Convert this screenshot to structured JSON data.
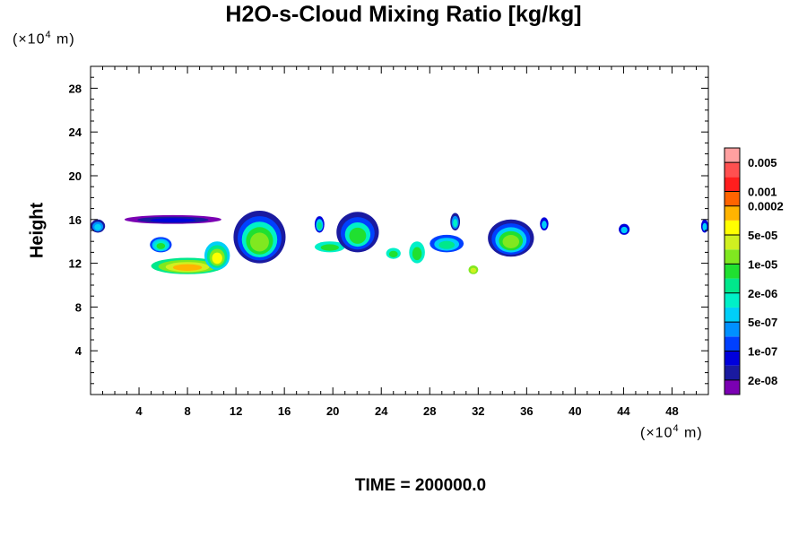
{
  "chart_data": {
    "type": "heatmap",
    "title": "H2O-s-Cloud Mixing Ratio [kg/kg]",
    "ylabel": "Height",
    "x_unit": {
      "prefix": "(×10",
      "exp": "4",
      "suffix": " m)"
    },
    "y_unit": {
      "prefix": "(×10",
      "exp": "4",
      "suffix": " m)"
    },
    "footer": "TIME = 200000.0",
    "xlim": [
      0,
      51
    ],
    "ylim": [
      0,
      30
    ],
    "x_ticks": [
      4,
      8,
      12,
      16,
      20,
      24,
      28,
      32,
      36,
      40,
      44,
      48
    ],
    "x_tick_labels": [
      "4",
      "8",
      "12",
      "16",
      "20",
      "24",
      "28",
      "32",
      "36",
      "40",
      "44",
      "48"
    ],
    "y_ticks": [
      4,
      8,
      12,
      16,
      20,
      24,
      28
    ],
    "y_tick_labels": [
      "4",
      "8",
      "12",
      "16",
      "20",
      "24",
      "28"
    ],
    "colorbar": {
      "colors": [
        "#7b00b3",
        "#1a1aa0",
        "#0000dc",
        "#0040ff",
        "#0090ff",
        "#00cff8",
        "#00f0c8",
        "#00e88c",
        "#20e030",
        "#80e820",
        "#d0f020",
        "#ffff00",
        "#ffb400",
        "#ff6400",
        "#ff1e1e",
        "#ff5050",
        "#ffa0a0"
      ],
      "labels": [
        "2e-08",
        "1e-07",
        "5e-07",
        "2e-06",
        "1e-05",
        "5e-05",
        "0.0002",
        "0.001",
        "0.005"
      ],
      "label_at_boundary": [
        1,
        3,
        5,
        7,
        9,
        11,
        13,
        14,
        16
      ]
    },
    "features": [
      {
        "x": [
          0.0,
          1.2
        ],
        "y": [
          14.8,
          16.0
        ],
        "levels": [
          1,
          4,
          5
        ]
      },
      {
        "x": [
          2.8,
          10.8
        ],
        "y": [
          15.6,
          16.4
        ],
        "levels": [
          0,
          1,
          2
        ]
      },
      {
        "x": [
          4.9,
          6.7
        ],
        "y": [
          13.0,
          14.4
        ],
        "levels": [
          3,
          5,
          6,
          8
        ]
      },
      {
        "x": [
          5.0,
          11.0
        ],
        "y": [
          11.0,
          12.5
        ],
        "levels": [
          7,
          9,
          10,
          12
        ]
      },
      {
        "x": [
          9.4,
          11.5
        ],
        "y": [
          11.4,
          14.0
        ],
        "levels": [
          5,
          7,
          9,
          11
        ]
      },
      {
        "x": [
          11.8,
          16.1
        ],
        "y": [
          12.0,
          16.8
        ],
        "levels": [
          1,
          3,
          6,
          8,
          9
        ]
      },
      {
        "x": [
          18.5,
          19.3
        ],
        "y": [
          14.8,
          16.3
        ],
        "levels": [
          2,
          5,
          7
        ]
      },
      {
        "x": [
          18.5,
          21.0
        ],
        "y": [
          13.0,
          14.0
        ],
        "levels": [
          6,
          8
        ]
      },
      {
        "x": [
          20.3,
          23.8
        ],
        "y": [
          13.0,
          16.7
        ],
        "levels": [
          1,
          3,
          6,
          8
        ]
      },
      {
        "x": [
          24.4,
          25.6
        ],
        "y": [
          12.4,
          13.4
        ],
        "levels": [
          6,
          8
        ]
      },
      {
        "x": [
          26.3,
          27.6
        ],
        "y": [
          12.0,
          14.0
        ],
        "levels": [
          6,
          8
        ]
      },
      {
        "x": [
          28.0,
          30.8
        ],
        "y": [
          13.0,
          14.6
        ],
        "levels": [
          3,
          5,
          7
        ]
      },
      {
        "x": [
          29.7,
          30.5
        ],
        "y": [
          15.0,
          16.6
        ],
        "levels": [
          1,
          4,
          6
        ]
      },
      {
        "x": [
          31.2,
          32.0
        ],
        "y": [
          11.0,
          11.8
        ],
        "levels": [
          9,
          10
        ]
      },
      {
        "x": [
          32.8,
          36.6
        ],
        "y": [
          12.6,
          16.0
        ],
        "levels": [
          1,
          3,
          5,
          8,
          9
        ]
      },
      {
        "x": [
          37.1,
          37.8
        ],
        "y": [
          15.0,
          16.2
        ],
        "levels": [
          2,
          5
        ]
      },
      {
        "x": [
          43.6,
          44.5
        ],
        "y": [
          14.6,
          15.6
        ],
        "levels": [
          2,
          5
        ]
      },
      {
        "x": [
          50.4,
          51.0
        ],
        "y": [
          14.8,
          16.0
        ],
        "levels": [
          2,
          5
        ]
      }
    ]
  }
}
